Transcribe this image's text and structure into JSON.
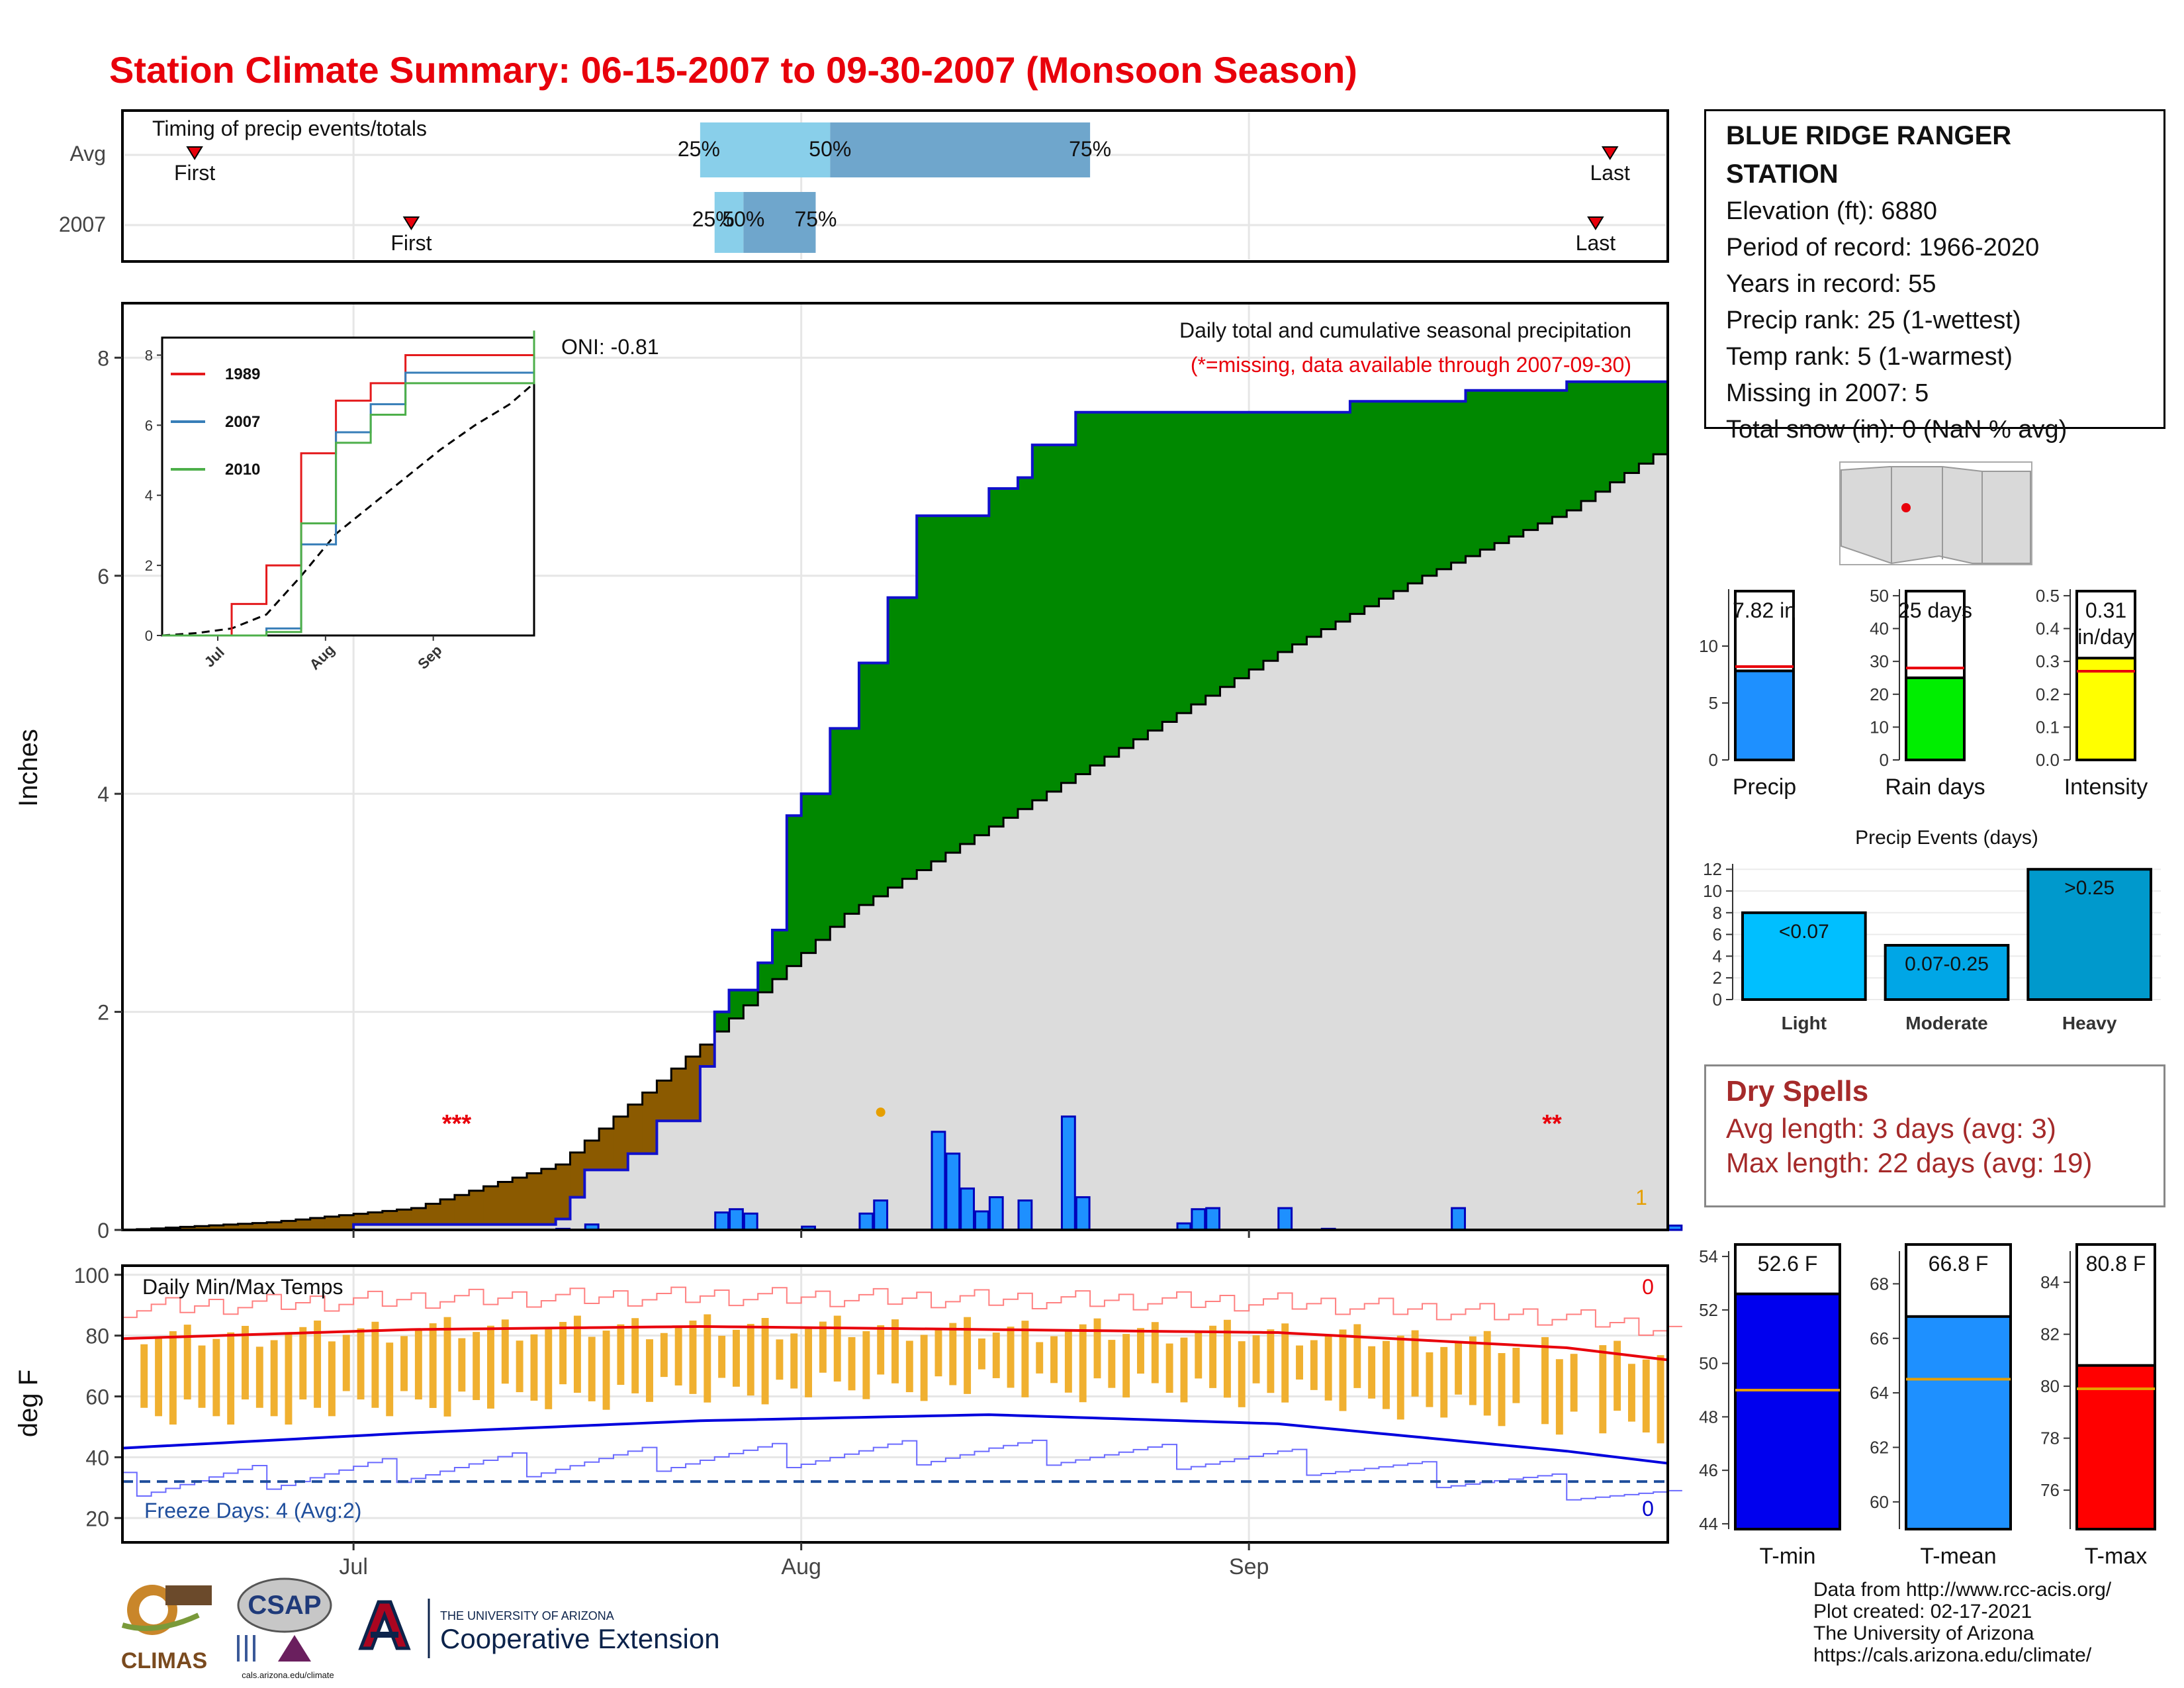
{
  "title": "Station Climate Summary: 06-15-2007 to 09-30-2007 (Monsoon Season)",
  "station": {
    "name": "BLUE RIDGE RANGER STATION",
    "lines": [
      "Elevation (ft): 6880",
      "Period of record: 1966-2020",
      "Years in record: 55",
      "Precip rank: 25 (1-wettest)",
      "Temp rank: 5 (1-warmest)",
      "Missing in 2007: 5",
      "Total snow (in): 0 (NaN % avg)"
    ]
  },
  "timing": {
    "label": "Timing of precip events/totals",
    "rows": [
      {
        "name": "Avg",
        "first_label": "First",
        "last_label": "Last",
        "p25": "25%",
        "p50": "50%",
        "p75": "75%"
      },
      {
        "name": "2007",
        "first_label": "First",
        "last_label": "Last",
        "p25": "25%",
        "p50": "50%",
        "p75": "75%"
      }
    ]
  },
  "precip_panel": {
    "title": "Daily total and cumulative seasonal precipitation",
    "note": "(*=missing, data available through 2007-09-30)",
    "oni": "ONI: -0.81",
    "ylabel": "Inches",
    "missing_left": "***",
    "missing_right": "**",
    "count_label": "1",
    "yticks": [
      "0",
      "2",
      "4",
      "6",
      "8"
    ]
  },
  "inset": {
    "legend": [
      "1989",
      "2007",
      "2010"
    ],
    "colors": [
      "#e41a1c",
      "#377eb8",
      "#4daf4a"
    ],
    "yticks": [
      "0",
      "2",
      "4",
      "6",
      "8"
    ],
    "xticks": [
      "Jul",
      "Aug",
      "Sep"
    ]
  },
  "temp_panel": {
    "title": "Daily Min/Max Temps",
    "ylabel": "deg F",
    "freeze": "Freeze Days: 4 (Avg:2)",
    "top_count": "0",
    "bottom_count": "0",
    "yticks": [
      "20",
      "40",
      "60",
      "80",
      "100"
    ],
    "xticks": [
      "Jul",
      "Aug",
      "Sep"
    ]
  },
  "bars_small": {
    "precip": {
      "label": "Precip",
      "value_text": "7.82 in",
      "yticks": [
        "0",
        "5",
        "10"
      ]
    },
    "raindays": {
      "label": "Rain days",
      "value_text": "25 days",
      "yticks": [
        "0",
        "10",
        "20",
        "30",
        "40",
        "50"
      ]
    },
    "intensity": {
      "label": "Intensity",
      "value_text": "0.31 in/day",
      "yticks": [
        "0.0",
        "0.1",
        "0.2",
        "0.3",
        "0.4",
        "0.5"
      ]
    }
  },
  "events": {
    "title": "Precip Events (days)",
    "categories": [
      "Light",
      "Moderate",
      "Heavy"
    ],
    "bar_labels": [
      "<0.07",
      "0.07-0.25",
      ">0.25"
    ],
    "yticks": [
      "0",
      "2",
      "4",
      "6",
      "8",
      "10",
      "12"
    ]
  },
  "dry_spells": {
    "title": "Dry Spells",
    "avg": "Avg length: 3 days (avg: 3)",
    "max": "Max length: 22 days (avg: 19)"
  },
  "temp_bars": {
    "tmin": {
      "label": "T-min",
      "value_text": "52.6 F",
      "yticks": [
        "44",
        "46",
        "48",
        "50",
        "52",
        "54"
      ]
    },
    "tmean": {
      "label": "T-mean",
      "value_text": "66.8 F",
      "yticks": [
        "60",
        "62",
        "64",
        "66",
        "68"
      ]
    },
    "tmax": {
      "label": "T-max",
      "value_text": "80.8 F",
      "yticks": [
        "76",
        "78",
        "80",
        "82",
        "84"
      ]
    }
  },
  "credits": [
    "Data from http://www.rcc-acis.org/",
    "Plot created: 02-17-2021",
    "The University of Arizona",
    "https://cals.arizona.edu/climate/"
  ],
  "logos": {
    "climas": "CLIMAS",
    "csap": "CSAP",
    "csap_url": "cals.arizona.edu/climate",
    "ua_small": "THE UNIVERSITY OF ARIZONA",
    "ua_big": "Cooperative Extension"
  },
  "chart_data": [
    {
      "type": "bar",
      "name": "timing",
      "categories": [
        "Avg",
        "2007"
      ],
      "series": [
        {
          "name": "Avg",
          "first": "2007-06-20",
          "p25": "2007-07-25",
          "p50": "2007-08-03",
          "p75": "2007-08-21",
          "last": "2007-09-26"
        },
        {
          "name": "2007",
          "first": "2007-07-05",
          "p25": "2007-07-26",
          "p50": "2007-07-28",
          "p75": "2007-08-02",
          "last": "2007-09-25"
        }
      ]
    },
    {
      "type": "area",
      "name": "cumulative precipitation",
      "xlim": [
        "2007-06-15",
        "2007-09-30"
      ],
      "ylim": [
        0,
        8.5
      ],
      "ylabel": "Inches",
      "cumulative_2007": [
        [
          0,
          0
        ],
        [
          16,
          0.05
        ],
        [
          30,
          0.1
        ],
        [
          31,
          0.3
        ],
        [
          32,
          0.55
        ],
        [
          35,
          0.7
        ],
        [
          37,
          1.0
        ],
        [
          40,
          1.5
        ],
        [
          41,
          2.0
        ],
        [
          42,
          2.2
        ],
        [
          44,
          2.45
        ],
        [
          45,
          2.75
        ],
        [
          46,
          3.8
        ],
        [
          47,
          4.0
        ],
        [
          49,
          4.6
        ],
        [
          51,
          5.2
        ],
        [
          53,
          5.8
        ],
        [
          55,
          6.55
        ],
        [
          60,
          6.8
        ],
        [
          62,
          6.9
        ],
        [
          63,
          7.2
        ],
        [
          66,
          7.5
        ],
        [
          85,
          7.6
        ],
        [
          93,
          7.7
        ],
        [
          100,
          7.78
        ],
        [
          107,
          7.82
        ]
      ],
      "average_cumulative": [
        [
          0,
          0
        ],
        [
          10,
          0.07
        ],
        [
          20,
          0.2
        ],
        [
          30,
          0.6
        ],
        [
          40,
          1.7
        ],
        [
          50,
          2.9
        ],
        [
          60,
          3.7
        ],
        [
          70,
          4.5
        ],
        [
          80,
          5.3
        ],
        [
          90,
          6.0
        ],
        [
          100,
          6.6
        ],
        [
          107,
          7.2
        ]
      ],
      "daily_precip": [
        [
          30,
          0.01
        ],
        [
          32,
          0.05
        ],
        [
          41,
          0.16
        ],
        [
          42,
          0.19
        ],
        [
          43,
          0.15
        ],
        [
          47,
          0.03
        ],
        [
          51,
          0.15
        ],
        [
          52,
          0.27
        ],
        [
          56,
          0.9
        ],
        [
          57,
          0.7
        ],
        [
          58,
          0.38
        ],
        [
          59,
          0.17
        ],
        [
          60,
          0.3
        ],
        [
          62,
          0.27
        ],
        [
          65,
          1.04
        ],
        [
          66,
          0.3
        ],
        [
          73,
          0.06
        ],
        [
          74,
          0.19
        ],
        [
          75,
          0.2
        ],
        [
          80,
          0.2
        ],
        [
          83,
          0.01
        ],
        [
          92,
          0.2
        ],
        [
          107,
          0.04
        ]
      ]
    },
    {
      "type": "line",
      "name": "inset cumulative comparison",
      "ylim": [
        0,
        8.5
      ],
      "series": [
        {
          "name": "1989",
          "values": [
            [
              0,
              0
            ],
            [
              20,
              0.9
            ],
            [
              30,
              2.0
            ],
            [
              40,
              5.2
            ],
            [
              50,
              6.7
            ],
            [
              60,
              7.2
            ],
            [
              70,
              8.0
            ],
            [
              107,
              8.2
            ]
          ]
        },
        {
          "name": "2007",
          "values": [
            [
              0,
              0
            ],
            [
              30,
              0.2
            ],
            [
              40,
              2.6
            ],
            [
              50,
              5.8
            ],
            [
              60,
              6.6
            ],
            [
              70,
              7.5
            ],
            [
              107,
              7.82
            ]
          ]
        },
        {
          "name": "2010",
          "values": [
            [
              0,
              0
            ],
            [
              30,
              0.1
            ],
            [
              40,
              3.2
            ],
            [
              50,
              5.5
            ],
            [
              60,
              6.3
            ],
            [
              70,
              7.2
            ],
            [
              107,
              8.7
            ]
          ]
        }
      ]
    },
    {
      "type": "line",
      "name": "daily temperatures",
      "ylabel": "deg F",
      "ylim": [
        20,
        100
      ],
      "freeze_threshold": 32,
      "avg_tmax": [
        [
          0,
          79
        ],
        [
          20,
          82
        ],
        [
          40,
          83
        ],
        [
          60,
          82
        ],
        [
          80,
          81
        ],
        [
          100,
          76
        ],
        [
          107,
          72
        ]
      ],
      "avg_tmin": [
        [
          0,
          43
        ],
        [
          20,
          48
        ],
        [
          40,
          52
        ],
        [
          60,
          54
        ],
        [
          80,
          51
        ],
        [
          100,
          42
        ],
        [
          107,
          38
        ]
      ]
    },
    {
      "type": "bar",
      "name": "Precip",
      "values": [
        7.82
      ],
      "average": 8.2,
      "ylim": [
        0,
        15
      ]
    },
    {
      "type": "bar",
      "name": "Rain days",
      "values": [
        25
      ],
      "average": 28,
      "ylim": [
        0,
        52
      ]
    },
    {
      "type": "bar",
      "name": "Intensity",
      "values": [
        0.31
      ],
      "average": 0.27,
      "ylim": [
        0,
        0.52
      ]
    },
    {
      "type": "bar",
      "name": "Precip Events (days)",
      "categories": [
        "Light",
        "Moderate",
        "Heavy"
      ],
      "values": [
        8,
        5,
        12
      ],
      "ylim": [
        0,
        12.5
      ]
    },
    {
      "type": "bar",
      "name": "T-min",
      "values": [
        52.6
      ],
      "average": 49.0,
      "ylim": [
        43.8,
        54.2
      ]
    },
    {
      "type": "bar",
      "name": "T-mean",
      "values": [
        66.8
      ],
      "average": 64.5,
      "ylim": [
        59,
        69.2
      ]
    },
    {
      "type": "bar",
      "name": "T-max",
      "values": [
        80.8
      ],
      "average": 79.9,
      "ylim": [
        74.5,
        85.2
      ]
    }
  ]
}
